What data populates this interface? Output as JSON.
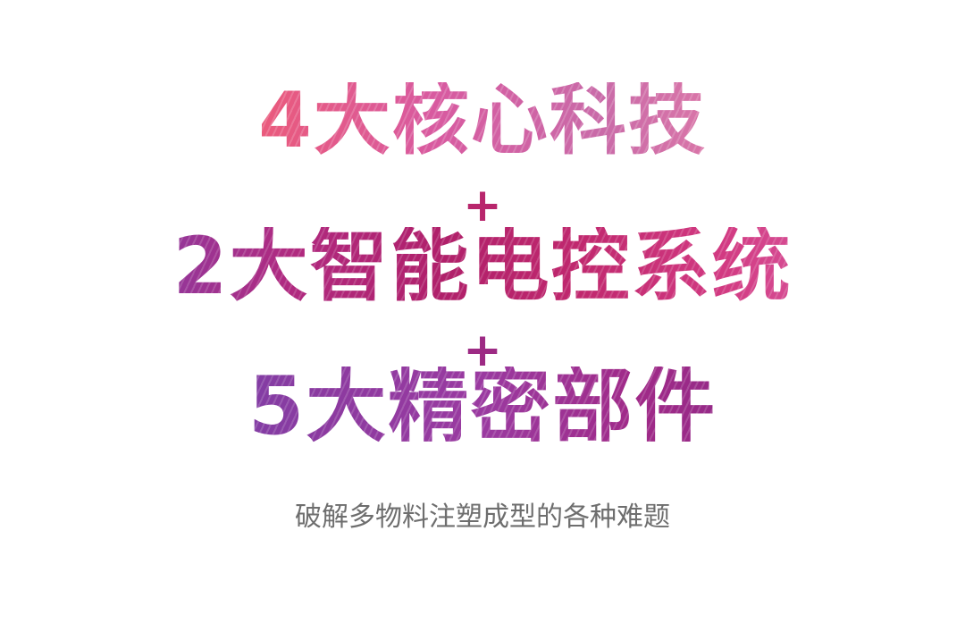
{
  "hero": {
    "line_1": "4大核心科技",
    "plus_1": "+",
    "line_2": "2大智能电控系统",
    "plus_2": "+",
    "line_3": "5大精密部件",
    "subtitle": "破解多物料注塑成型的各种难题"
  },
  "colors": {
    "background": "#ffffff",
    "subtitle_text": "#6e6e6e",
    "line_1_gradient": [
      "#f07a21",
      "#eb5a7a",
      "#d85aa0",
      "#c96aa8",
      "#f09a4a"
    ],
    "line_2_gradient": [
      "#7a3aa8",
      "#b02a80",
      "#b0206a",
      "#d23a82",
      "#e070b0"
    ],
    "line_3_gradient": [
      "#6a3aa0",
      "#8c3aa0",
      "#a02a88",
      "#7a2a78"
    ],
    "plus_1": "#b0236a",
    "plus_2": "#9a2a88"
  }
}
